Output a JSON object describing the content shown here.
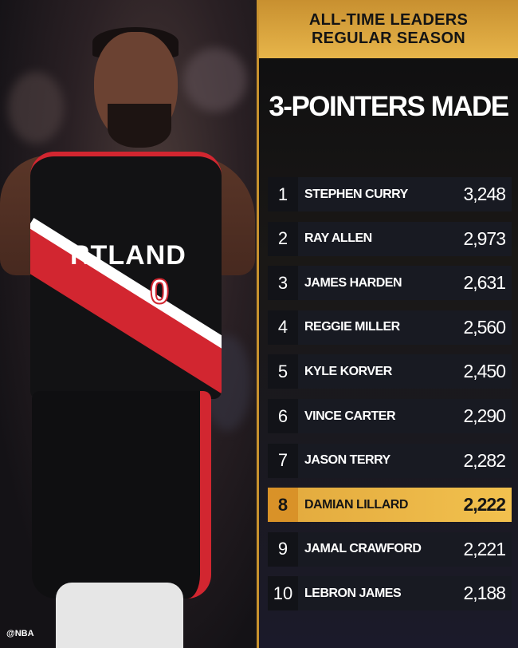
{
  "header": {
    "line1": "ALL-TIME LEADERS",
    "line2": "REGULAR SEASON"
  },
  "title": "3-POINTERS MADE",
  "photo": {
    "jersey_text": "RTLAND",
    "jersey_number": "0",
    "watermark": "@NBA"
  },
  "colors": {
    "gold": "#e7b54a",
    "row_bg": "#181a22",
    "highlight": "#f2c14e"
  },
  "leaders": [
    {
      "rank": "1",
      "name": "STEPHEN CURRY",
      "value": "3,248"
    },
    {
      "rank": "2",
      "name": "RAY ALLEN",
      "value": "2,973"
    },
    {
      "rank": "3",
      "name": "JAMES HARDEN",
      "value": "2,631"
    },
    {
      "rank": "4",
      "name": "REGGIE MILLER",
      "value": "2,560"
    },
    {
      "rank": "5",
      "name": "KYLE KORVER",
      "value": "2,450"
    },
    {
      "rank": "6",
      "name": "VINCE CARTER",
      "value": "2,290"
    },
    {
      "rank": "7",
      "name": "JASON TERRY",
      "value": "2,282"
    },
    {
      "rank": "8",
      "name": "DAMIAN LILLARD",
      "value": "2,222",
      "highlighted": true
    },
    {
      "rank": "9",
      "name": "JAMAL CRAWFORD",
      "value": "2,221"
    },
    {
      "rank": "10",
      "name": "LEBRON JAMES",
      "value": "2,188"
    }
  ]
}
